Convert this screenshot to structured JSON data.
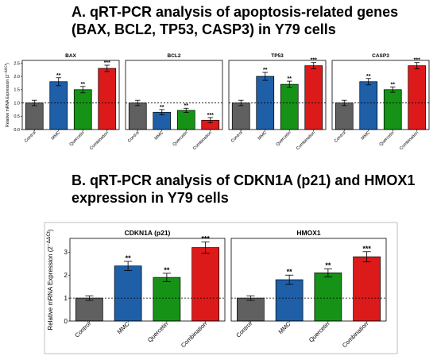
{
  "panel_a": {
    "title_line1": "A. qRT-PCR analysis of apoptosis-related genes",
    "title_line2": "(BAX, BCL2, TP53, CASP3) in Y79 cells"
  },
  "panel_b": {
    "title_line1": "B. qRT-PCR analysis of CDKN1A (p21) and HMOX1",
    "title_line2": "expression in Y79 cells"
  },
  "ylabel_text": "Relative mRNA Expression (2",
  "ylabel_sup": "−ΔΔCt",
  "ylabel_close": ")",
  "colors": [
    "#606060",
    "#1f5fa8",
    "#169316",
    "#dd1a1a"
  ],
  "chart_data": [
    {
      "type": "bar",
      "title": "BAX",
      "panel": "A",
      "categories": [
        "Control",
        "MMC",
        "Quercetin",
        "Combination"
      ],
      "values": [
        1.0,
        1.8,
        1.5,
        2.3
      ],
      "errors": [
        0.1,
        0.15,
        0.12,
        0.12
      ],
      "significance": [
        "",
        "**",
        "**",
        "***"
      ],
      "ylim": [
        0,
        2.6
      ],
      "yticks": [
        0.0,
        0.5,
        1.0,
        1.5,
        2.0,
        2.5
      ],
      "reference_line": 1.0,
      "ylabel": "Relative mRNA Expression (2−ΔΔCt)"
    },
    {
      "type": "bar",
      "title": "BCL2",
      "panel": "A",
      "categories": [
        "Control",
        "MMC",
        "Quercetin",
        "Combination"
      ],
      "values": [
        1.0,
        0.65,
        0.72,
        0.35
      ],
      "errors": [
        0.1,
        0.1,
        0.08,
        0.1
      ],
      "significance": [
        "",
        "**",
        "**",
        "***"
      ],
      "ylim": [
        0,
        2.6
      ],
      "reference_line": 1.0
    },
    {
      "type": "bar",
      "title": "TP53",
      "panel": "A",
      "categories": [
        "Control",
        "MMC",
        "Quercetin",
        "Combination"
      ],
      "values": [
        1.0,
        2.0,
        1.7,
        2.4
      ],
      "errors": [
        0.1,
        0.15,
        0.12,
        0.12
      ],
      "significance": [
        "",
        "**",
        "**",
        "***"
      ],
      "ylim": [
        0,
        2.6
      ],
      "reference_line": 1.0
    },
    {
      "type": "bar",
      "title": "CASP3",
      "panel": "A",
      "categories": [
        "Control",
        "MMC",
        "Quercetin",
        "Combination"
      ],
      "values": [
        1.0,
        1.8,
        1.5,
        2.4
      ],
      "errors": [
        0.1,
        0.12,
        0.1,
        0.12
      ],
      "significance": [
        "",
        "**",
        "**",
        "***"
      ],
      "ylim": [
        0,
        2.6
      ],
      "reference_line": 1.0
    },
    {
      "type": "bar",
      "title": "CDKN1A (p21)",
      "panel": "B",
      "categories": [
        "Control",
        "MMC",
        "Quercetin",
        "Combination"
      ],
      "values": [
        1.0,
        2.4,
        1.9,
        3.2
      ],
      "errors": [
        0.1,
        0.2,
        0.18,
        0.25
      ],
      "significance": [
        "",
        "**",
        "**",
        "***"
      ],
      "ylim": [
        0,
        3.6
      ],
      "yticks": [
        0,
        1,
        2,
        3
      ],
      "reference_line": 1.0,
      "ylabel": "Relative mRNA Expression (2−ΔΔCt)"
    },
    {
      "type": "bar",
      "title": "HMOX1",
      "panel": "B",
      "categories": [
        "Control",
        "MMC",
        "Quercetin",
        "Combination"
      ],
      "values": [
        1.0,
        1.8,
        2.1,
        2.8
      ],
      "errors": [
        0.1,
        0.2,
        0.18,
        0.22
      ],
      "significance": [
        "",
        "**",
        "**",
        "***"
      ],
      "ylim": [
        0,
        3.6
      ],
      "reference_line": 1.0
    }
  ]
}
